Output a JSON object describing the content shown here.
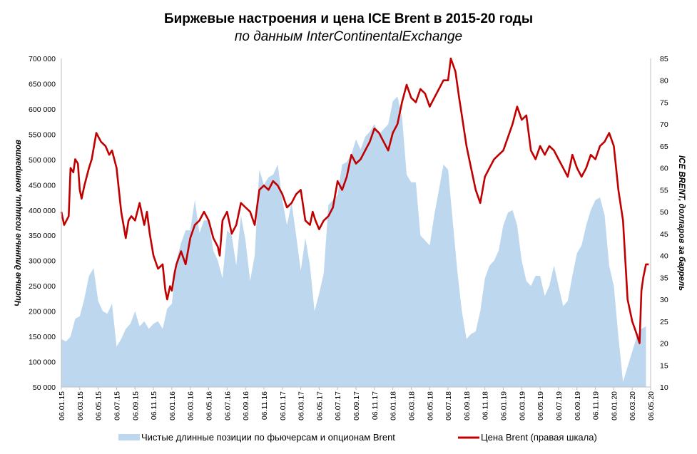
{
  "chart_data": {
    "type": "area+line",
    "title": "Биржевые настроения и цена ICE Brent в 2015-20 годы",
    "subtitle": "по данным InterContinentalExchange",
    "ylabel_left": "Чистые длинные позиции, контрактов",
    "ylabel_right": "ICE BRENT, долларов за баррель",
    "ylim_left": [
      50000,
      700000
    ],
    "ylim_right": [
      10,
      85
    ],
    "yticks_left": [
      "50 000",
      "100 000",
      "150 000",
      "200 000",
      "250 000",
      "300 000",
      "350 000",
      "400 000",
      "450 000",
      "500 000",
      "550 000",
      "600 000",
      "650 000",
      "700 000"
    ],
    "yticks_right": [
      "10",
      "15",
      "20",
      "25",
      "30",
      "35",
      "40",
      "45",
      "50",
      "55",
      "60",
      "65",
      "70",
      "75",
      "80",
      "85"
    ],
    "xticks": [
      "06.01.15",
      "06.03.15",
      "06.05.15",
      "06.07.15",
      "06.09.15",
      "06.11.15",
      "06.01.16",
      "06.03.16",
      "06.05.16",
      "06.07.16",
      "06.09.16",
      "06.11.16",
      "06.01.17",
      "06.03.17",
      "06.05.17",
      "06.07.17",
      "06.09.17",
      "06.11.17",
      "06.01.18",
      "06.03.18",
      "06.05.18",
      "06.07.18",
      "06.09.18",
      "06.11.18",
      "06.01.19",
      "06.03.19",
      "06.05.19",
      "06.07.19",
      "06.09.19",
      "06.11.19",
      "06.01.20",
      "06.03.20",
      "06.05.20"
    ],
    "legend_position": "bottom",
    "series": [
      {
        "name": "Чистые длинные позиции по фьючерсам и опционам Brent",
        "type": "area",
        "color": "#bdd7ee",
        "axis": "left",
        "points": [
          [
            0,
            145000
          ],
          [
            0.5,
            140000
          ],
          [
            1,
            150000
          ],
          [
            1.5,
            185000
          ],
          [
            2,
            190000
          ],
          [
            2.5,
            225000
          ],
          [
            3,
            270000
          ],
          [
            3.5,
            285000
          ],
          [
            4,
            220000
          ],
          [
            4.5,
            200000
          ],
          [
            5,
            195000
          ],
          [
            5.5,
            215000
          ],
          [
            6,
            130000
          ],
          [
            6.5,
            145000
          ],
          [
            7,
            165000
          ],
          [
            7.5,
            175000
          ],
          [
            8,
            200000
          ],
          [
            8.5,
            170000
          ],
          [
            9,
            180000
          ],
          [
            9.5,
            165000
          ],
          [
            10,
            175000
          ],
          [
            10.5,
            180000
          ],
          [
            11,
            165000
          ],
          [
            11.5,
            205000
          ],
          [
            12,
            215000
          ],
          [
            12.5,
            300000
          ],
          [
            13,
            335000
          ],
          [
            13.5,
            360000
          ],
          [
            14,
            360000
          ],
          [
            14.5,
            420000
          ],
          [
            15,
            355000
          ],
          [
            15.5,
            380000
          ],
          [
            16,
            380000
          ],
          [
            16.5,
            320000
          ],
          [
            17,
            300000
          ],
          [
            17.5,
            265000
          ],
          [
            18,
            360000
          ],
          [
            18.5,
            350000
          ],
          [
            19,
            290000
          ],
          [
            19.5,
            390000
          ],
          [
            20,
            340000
          ],
          [
            20.5,
            260000
          ],
          [
            21,
            310000
          ],
          [
            21.5,
            480000
          ],
          [
            22,
            450000
          ],
          [
            22.5,
            465000
          ],
          [
            23,
            470000
          ],
          [
            23.5,
            490000
          ],
          [
            24,
            420000
          ],
          [
            24.5,
            370000
          ],
          [
            25,
            415000
          ],
          [
            25.5,
            350000
          ],
          [
            26,
            280000
          ],
          [
            26.5,
            345000
          ],
          [
            27,
            290000
          ],
          [
            27.5,
            200000
          ],
          [
            28,
            235000
          ],
          [
            28.5,
            275000
          ],
          [
            29,
            410000
          ],
          [
            29.5,
            420000
          ],
          [
            30,
            430000
          ],
          [
            30.5,
            490000
          ],
          [
            31,
            495000
          ],
          [
            31.5,
            510000
          ],
          [
            32,
            540000
          ],
          [
            32.5,
            520000
          ],
          [
            33,
            545000
          ],
          [
            33.5,
            555000
          ],
          [
            34,
            570000
          ],
          [
            34.5,
            550000
          ],
          [
            35,
            560000
          ],
          [
            35.5,
            570000
          ],
          [
            36,
            615000
          ],
          [
            36.5,
            625000
          ],
          [
            37,
            585000
          ],
          [
            37.5,
            470000
          ],
          [
            38,
            455000
          ],
          [
            38.5,
            455000
          ],
          [
            39,
            350000
          ],
          [
            39.5,
            340000
          ],
          [
            40,
            330000
          ],
          [
            40.5,
            390000
          ],
          [
            41,
            440000
          ],
          [
            41.5,
            490000
          ],
          [
            42,
            480000
          ],
          [
            42.5,
            380000
          ],
          [
            43,
            280000
          ],
          [
            43.5,
            200000
          ],
          [
            44,
            145000
          ],
          [
            44.5,
            155000
          ],
          [
            45,
            160000
          ],
          [
            45.5,
            200000
          ],
          [
            46,
            265000
          ],
          [
            46.5,
            290000
          ],
          [
            47,
            300000
          ],
          [
            47.5,
            320000
          ],
          [
            48,
            370000
          ],
          [
            48.5,
            395000
          ],
          [
            49,
            400000
          ],
          [
            49.5,
            370000
          ],
          [
            50,
            300000
          ],
          [
            50.5,
            260000
          ],
          [
            51,
            250000
          ],
          [
            51.5,
            270000
          ],
          [
            52,
            270000
          ],
          [
            52.5,
            230000
          ],
          [
            53,
            250000
          ],
          [
            53.5,
            290000
          ],
          [
            54,
            250000
          ],
          [
            54.5,
            210000
          ],
          [
            55,
            220000
          ],
          [
            55.5,
            270000
          ],
          [
            56,
            315000
          ],
          [
            56.5,
            330000
          ],
          [
            57,
            370000
          ],
          [
            57.5,
            400000
          ],
          [
            58,
            420000
          ],
          [
            58.5,
            425000
          ],
          [
            59,
            390000
          ],
          [
            59.5,
            290000
          ],
          [
            60,
            250000
          ],
          [
            60.5,
            150000
          ],
          [
            61,
            60000
          ],
          [
            61.5,
            90000
          ],
          [
            62,
            120000
          ],
          [
            62.5,
            150000
          ],
          [
            63,
            165000
          ],
          [
            63.5,
            170000
          ]
        ]
      },
      {
        "name": "Цена Brent (правая шкала)",
        "type": "line",
        "color": "#c00000",
        "axis": "right",
        "points": [
          [
            0,
            50
          ],
          [
            0.3,
            47
          ],
          [
            0.8,
            49
          ],
          [
            1,
            60
          ],
          [
            1.3,
            59
          ],
          [
            1.5,
            62
          ],
          [
            1.8,
            61
          ],
          [
            2,
            55
          ],
          [
            2.2,
            53
          ],
          [
            2.5,
            56
          ],
          [
            3,
            60
          ],
          [
            3.3,
            62
          ],
          [
            3.8,
            68
          ],
          [
            4.3,
            66
          ],
          [
            4.8,
            65
          ],
          [
            5.2,
            63
          ],
          [
            5.5,
            64
          ],
          [
            6,
            60
          ],
          [
            6.5,
            50
          ],
          [
            7,
            44
          ],
          [
            7.3,
            48
          ],
          [
            7.6,
            49
          ],
          [
            8,
            48
          ],
          [
            8.5,
            52
          ],
          [
            9,
            47
          ],
          [
            9.3,
            50
          ],
          [
            9.6,
            45
          ],
          [
            10,
            40
          ],
          [
            10.5,
            37
          ],
          [
            11,
            38
          ],
          [
            11.3,
            32
          ],
          [
            11.5,
            30
          ],
          [
            11.8,
            33
          ],
          [
            12,
            32
          ],
          [
            12.3,
            36
          ],
          [
            12.5,
            38
          ],
          [
            13,
            41
          ],
          [
            13.5,
            38
          ],
          [
            14,
            44
          ],
          [
            14.5,
            47
          ],
          [
            15,
            48
          ],
          [
            15.5,
            50
          ],
          [
            16,
            48
          ],
          [
            16.5,
            44
          ],
          [
            17,
            42
          ],
          [
            17.2,
            40
          ],
          [
            17.5,
            48
          ],
          [
            18,
            50
          ],
          [
            18.5,
            45
          ],
          [
            19,
            47
          ],
          [
            19.5,
            52
          ],
          [
            20,
            51
          ],
          [
            20.5,
            50
          ],
          [
            21,
            47
          ],
          [
            21.5,
            55
          ],
          [
            22,
            56
          ],
          [
            22.5,
            55
          ],
          [
            23,
            57
          ],
          [
            23.5,
            56
          ],
          [
            24,
            54
          ],
          [
            24.5,
            51
          ],
          [
            25,
            52
          ],
          [
            25.5,
            54
          ],
          [
            26,
            55
          ],
          [
            26.5,
            48
          ],
          [
            27,
            47
          ],
          [
            27.3,
            50
          ],
          [
            27.6,
            48
          ],
          [
            28,
            46
          ],
          [
            28.5,
            48
          ],
          [
            29,
            49
          ],
          [
            29.5,
            51
          ],
          [
            30,
            57
          ],
          [
            30.5,
            55
          ],
          [
            31,
            58
          ],
          [
            31.5,
            63
          ],
          [
            32,
            61
          ],
          [
            32.5,
            62
          ],
          [
            33,
            64
          ],
          [
            33.5,
            66
          ],
          [
            34,
            69
          ],
          [
            34.5,
            68
          ],
          [
            35,
            66
          ],
          [
            35.5,
            64
          ],
          [
            36,
            68
          ],
          [
            36.5,
            70
          ],
          [
            37,
            75
          ],
          [
            37.5,
            79
          ],
          [
            38,
            76
          ],
          [
            38.5,
            75
          ],
          [
            39,
            78
          ],
          [
            39.5,
            77
          ],
          [
            40,
            74
          ],
          [
            40.5,
            76
          ],
          [
            41,
            78
          ],
          [
            41.5,
            80
          ],
          [
            42,
            80
          ],
          [
            42.3,
            85
          ],
          [
            42.8,
            82
          ],
          [
            43.2,
            76
          ],
          [
            43.5,
            72
          ],
          [
            44,
            65
          ],
          [
            44.5,
            60
          ],
          [
            45,
            55
          ],
          [
            45.5,
            52
          ],
          [
            46,
            58
          ],
          [
            46.5,
            60
          ],
          [
            47,
            62
          ],
          [
            47.5,
            63
          ],
          [
            48,
            64
          ],
          [
            48.5,
            67
          ],
          [
            49,
            70
          ],
          [
            49.5,
            74
          ],
          [
            50,
            71
          ],
          [
            50.5,
            72
          ],
          [
            51,
            64
          ],
          [
            51.5,
            62
          ],
          [
            52,
            65
          ],
          [
            52.5,
            63
          ],
          [
            53,
            65
          ],
          [
            53.5,
            64
          ],
          [
            54,
            62
          ],
          [
            54.5,
            60
          ],
          [
            55,
            58
          ],
          [
            55.5,
            63
          ],
          [
            56,
            60
          ],
          [
            56.5,
            58
          ],
          [
            57,
            60
          ],
          [
            57.5,
            63
          ],
          [
            58,
            62
          ],
          [
            58.5,
            65
          ],
          [
            59,
            66
          ],
          [
            59.5,
            68
          ],
          [
            60,
            65
          ],
          [
            60.5,
            55
          ],
          [
            61,
            48
          ],
          [
            61.5,
            30
          ],
          [
            62,
            25
          ],
          [
            62.5,
            22
          ],
          [
            62.8,
            20
          ],
          [
            63,
            32
          ],
          [
            63.2,
            35
          ],
          [
            63.5,
            38
          ],
          [
            63.8,
            38
          ]
        ]
      }
    ]
  }
}
